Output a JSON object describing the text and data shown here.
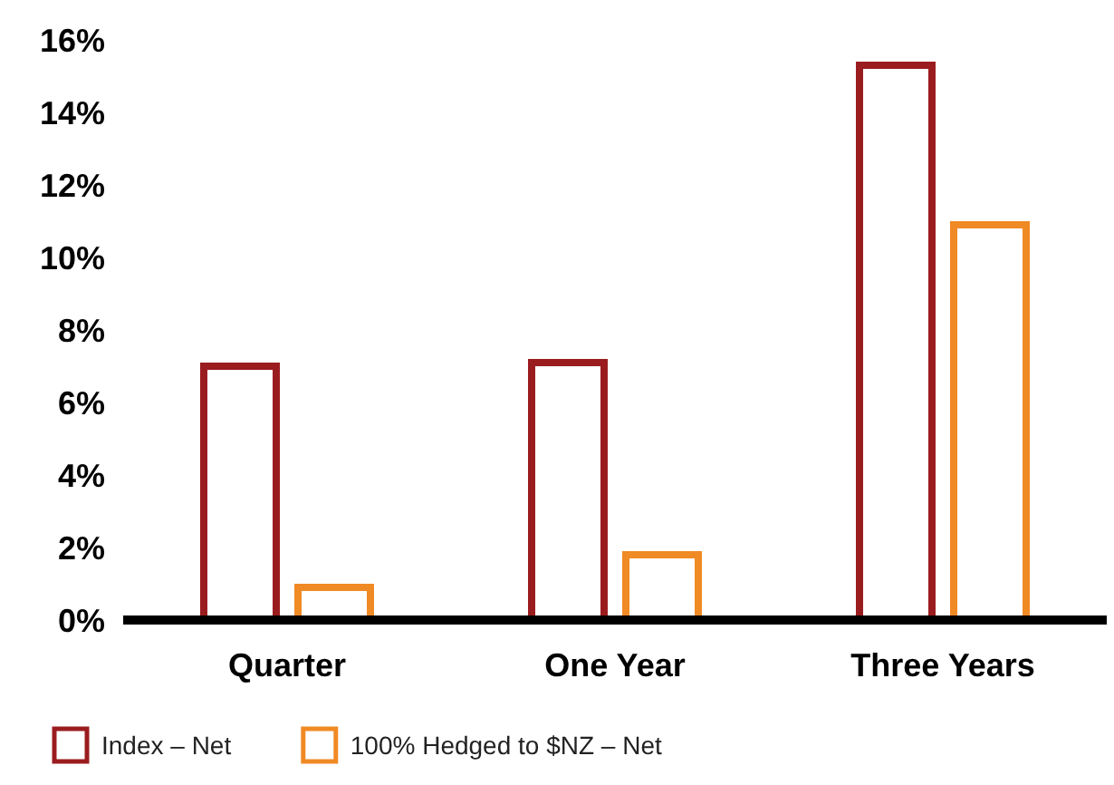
{
  "chart_data": {
    "type": "bar",
    "categories": [
      "Quarter",
      "One Year",
      "Three Years"
    ],
    "series": [
      {
        "name": "Index – Net",
        "color": "#9b1c1f",
        "values": [
          7.0,
          7.1,
          15.3
        ]
      },
      {
        "name": "100% Hedged to $NZ – Net",
        "color": "#f08a24",
        "values": [
          0.9,
          1.8,
          10.9
        ]
      }
    ],
    "ylim": [
      0,
      16
    ],
    "yticks": [
      {
        "value": 0,
        "label": "0%"
      },
      {
        "value": 2,
        "label": "2%"
      },
      {
        "value": 4,
        "label": "4%"
      },
      {
        "value": 6,
        "label": "6%"
      },
      {
        "value": 8,
        "label": "8%"
      },
      {
        "value": 10,
        "label": "10%"
      },
      {
        "value": 12,
        "label": "12%"
      },
      {
        "value": 14,
        "label": "14%"
      },
      {
        "value": 16,
        "label": "16%"
      }
    ],
    "grid": false,
    "legend": "bottom"
  }
}
